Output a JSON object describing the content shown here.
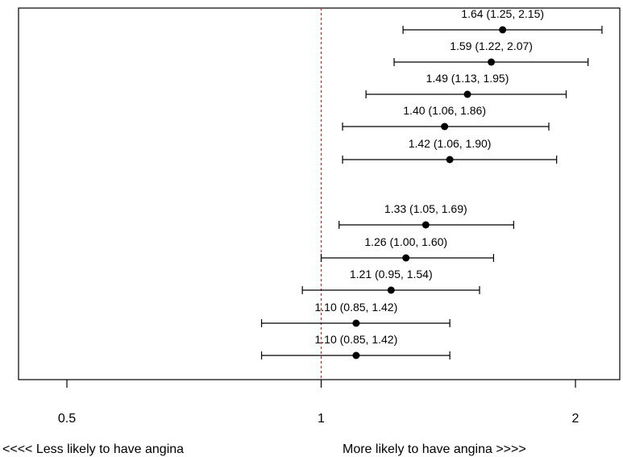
{
  "chart_data": {
    "type": "forest",
    "x_scale": "log",
    "xlim": [
      0.4,
      2.3
    ],
    "x_ticks": [
      0.5,
      1,
      2
    ],
    "x_tick_labels": [
      "0.5",
      "1",
      "2"
    ],
    "reference_line": 1,
    "reference_line_color": "#d62728",
    "direction_labels": {
      "left": "<<<< Less likely to have angina",
      "right": "More likely to have angina >>>>"
    },
    "rows": [
      {
        "estimate": 1.64,
        "lower": 1.25,
        "upper": 2.15,
        "label": "1.64 (1.25, 2.15)"
      },
      {
        "estimate": 1.59,
        "lower": 1.22,
        "upper": 2.07,
        "label": "1.59 (1.22, 2.07)"
      },
      {
        "estimate": 1.49,
        "lower": 1.13,
        "upper": 1.95,
        "label": "1.49 (1.13, 1.95)"
      },
      {
        "estimate": 1.4,
        "lower": 1.06,
        "upper": 1.86,
        "label": "1.40 (1.06, 1.86)"
      },
      {
        "estimate": 1.42,
        "lower": 1.06,
        "upper": 1.9,
        "label": "1.42 (1.06, 1.90)"
      },
      {
        "estimate": 1.33,
        "lower": 1.05,
        "upper": 1.69,
        "label": "1.33 (1.05, 1.69)"
      },
      {
        "estimate": 1.26,
        "lower": 1.0,
        "upper": 1.6,
        "label": "1.26 (1.00, 1.60)"
      },
      {
        "estimate": 1.21,
        "lower": 0.95,
        "upper": 1.54,
        "label": "1.21 (0.95, 1.54)"
      },
      {
        "estimate": 1.1,
        "lower": 0.85,
        "upper": 1.42,
        "label": "1.10 (0.85, 1.42)"
      },
      {
        "estimate": 1.1,
        "lower": 0.85,
        "upper": 1.42,
        "label": "1.10 (0.85, 1.42)"
      }
    ]
  }
}
